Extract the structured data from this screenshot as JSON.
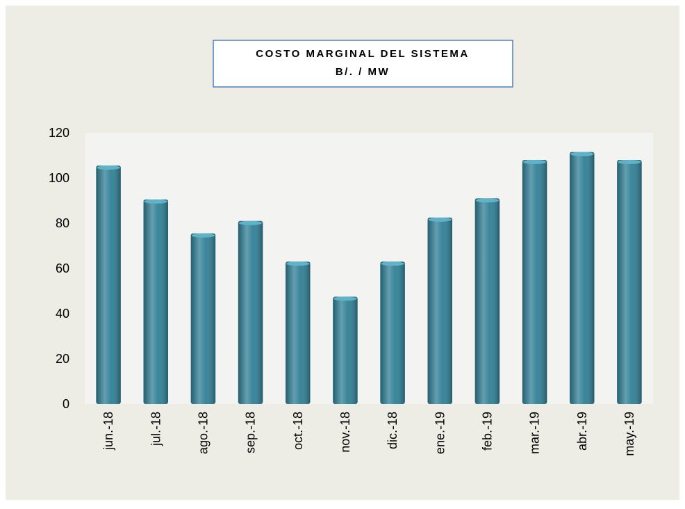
{
  "chart_data": {
    "type": "bar",
    "title": "COSTO MARGINAL DEL SISTEMA",
    "subtitle": "B/. / MW",
    "categories": [
      "jun.-18",
      "jul.-18",
      "ago.-18",
      "sep.-18",
      "oct.-18",
      "nov.-18",
      "dic.-18",
      "ene.-19",
      "feb.-19",
      "mar.-19",
      "abr.-19",
      "may.-19"
    ],
    "values": [
      105.5,
      90.5,
      75.5,
      81,
      63,
      47.5,
      63,
      82.5,
      91,
      108,
      111.5,
      108
    ],
    "color": "#2f7f95",
    "ylim": [
      0,
      120
    ],
    "yticks": [
      0,
      20,
      40,
      60,
      80,
      100,
      120
    ],
    "grid": false
  }
}
